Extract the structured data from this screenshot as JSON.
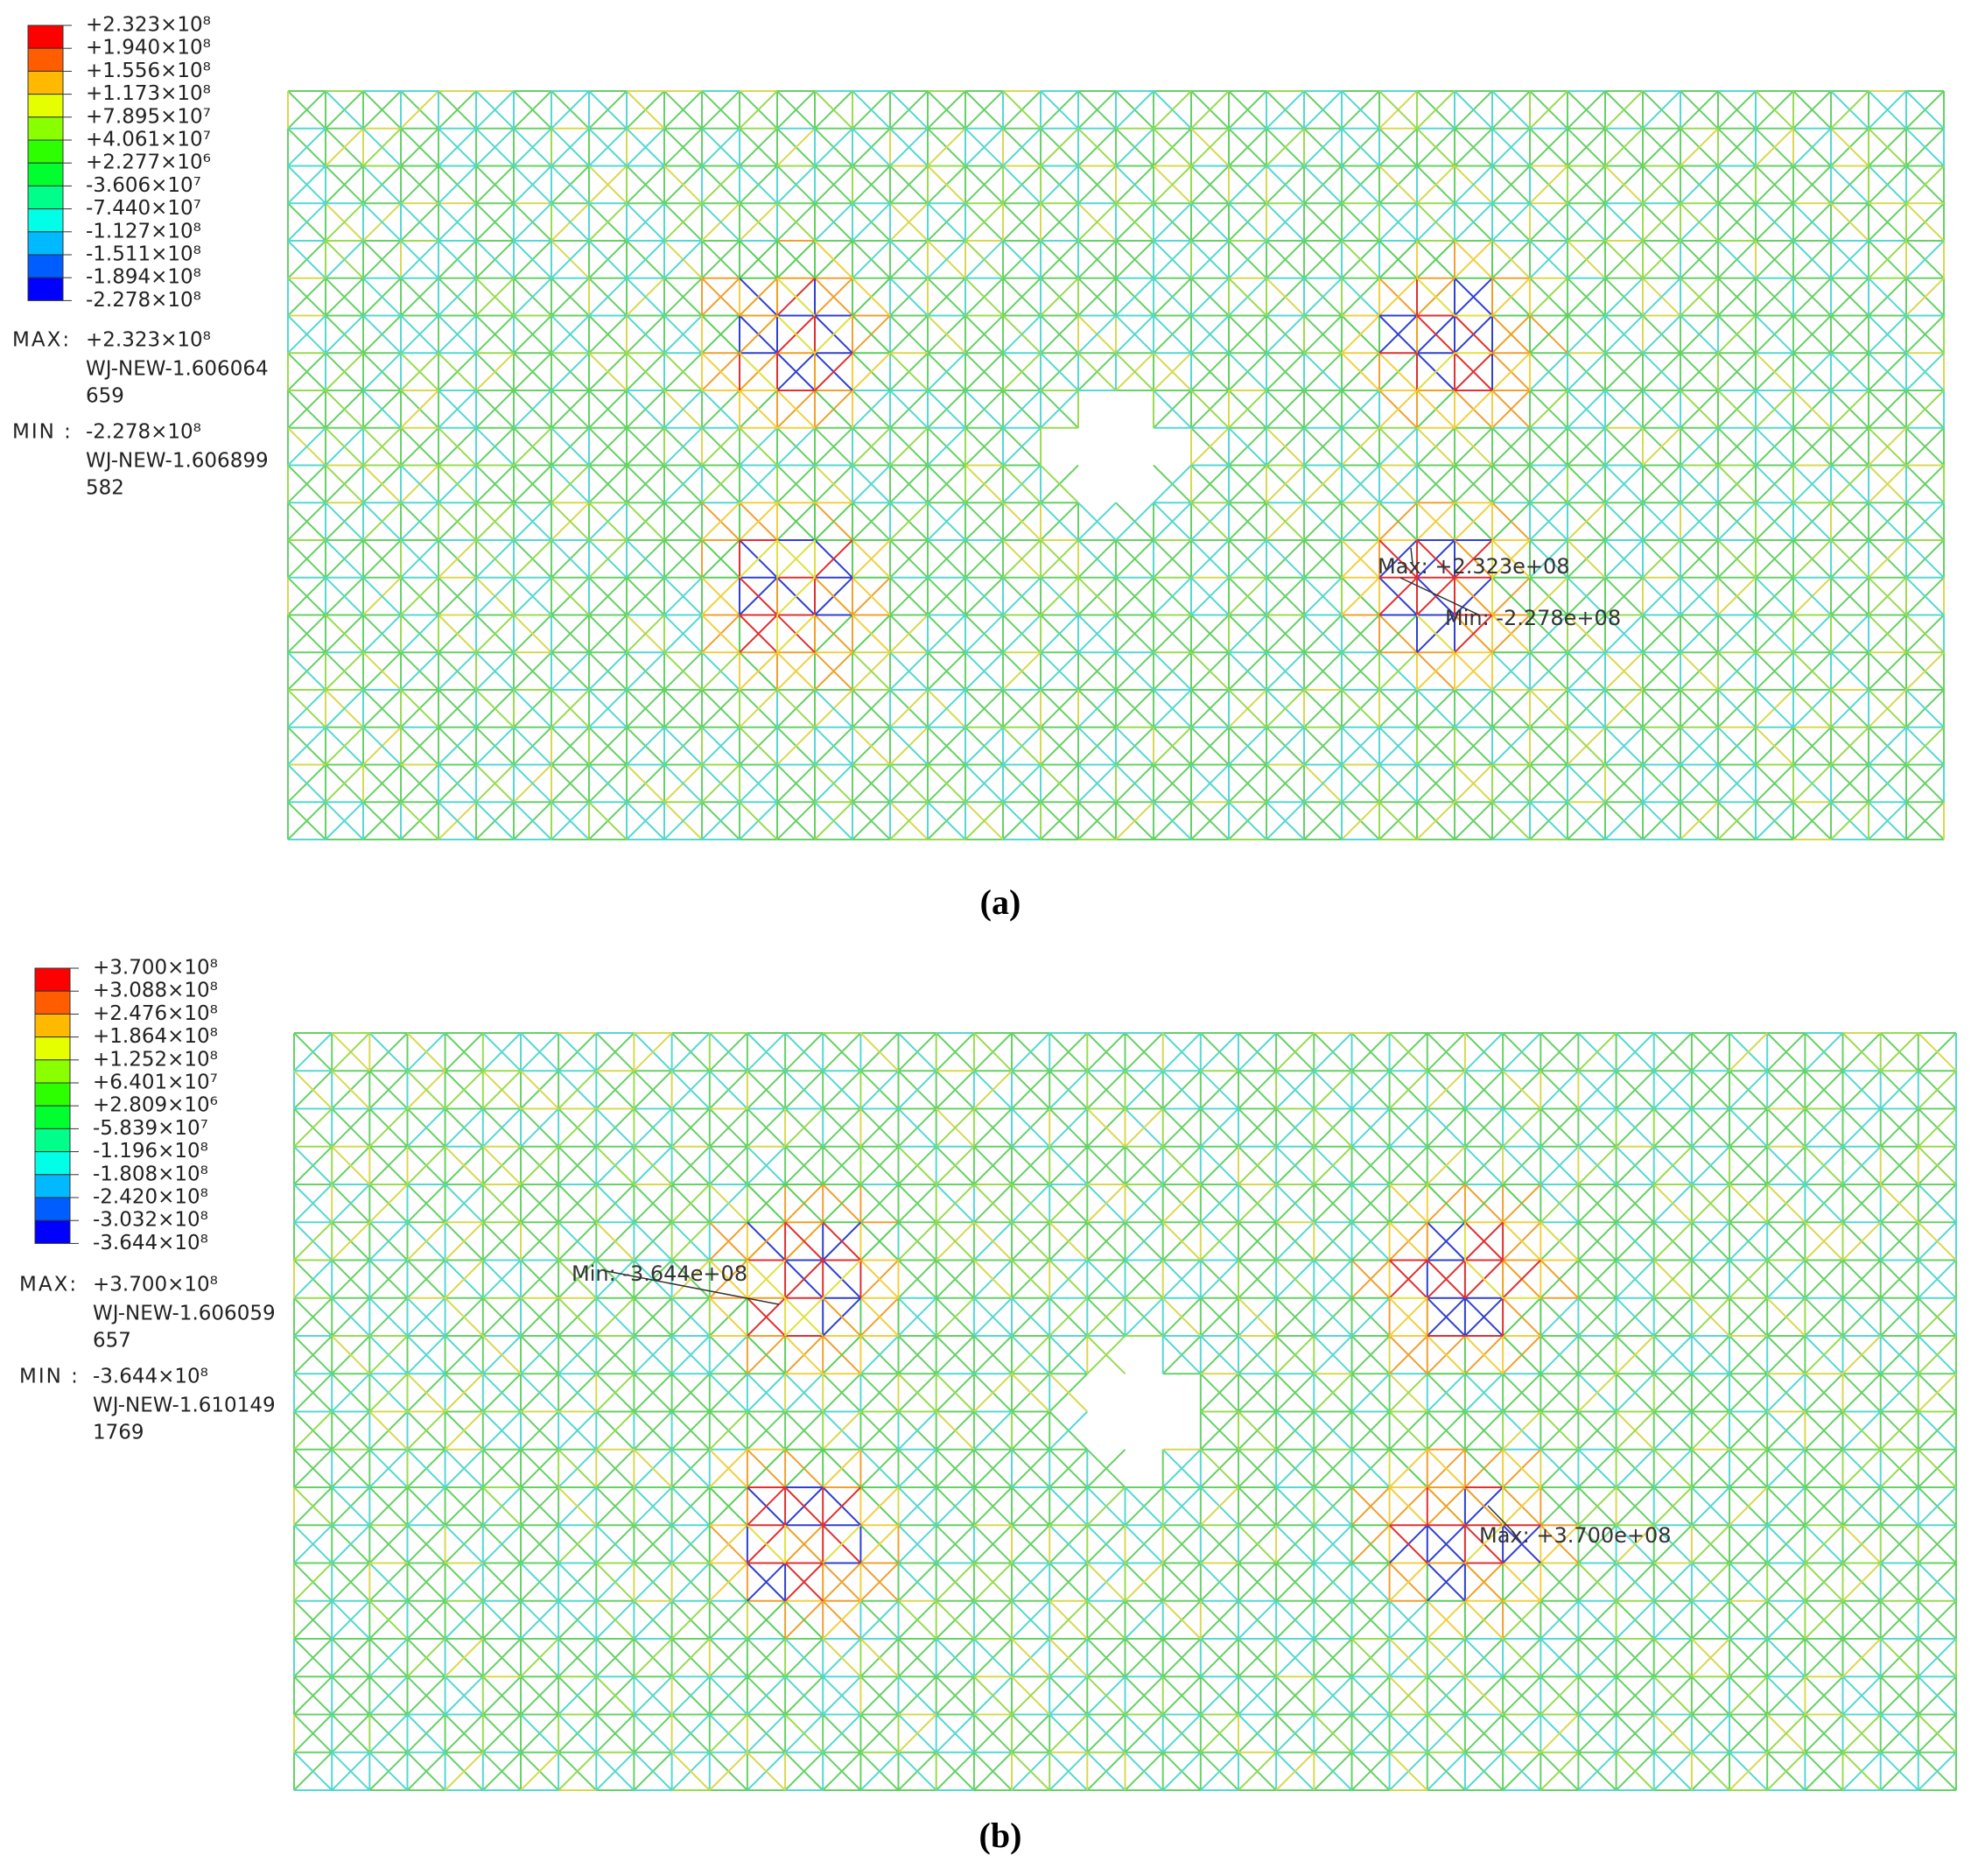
{
  "panels": [
    {
      "caption": "(a)",
      "legend": [
        "+2.323×10⁸",
        "+1.940×10⁸",
        "+1.556×10⁸",
        "+1.173×10⁸",
        "+7.895×10⁷",
        "+4.061×10⁷",
        "+2.277×10⁶",
        "-3.606×10⁷",
        "-7.440×10⁷",
        "-1.127×10⁸",
        "-1.511×10⁸",
        "-1.894×10⁸",
        "-2.278×10⁸"
      ],
      "max": {
        "label": "MAX:",
        "value": "+2.323×10⁸",
        "element": "WJ-NEW-1.606064",
        "node": "659"
      },
      "min": {
        "label": "MIN :",
        "value": "-2.278×10⁸",
        "element": "WJ-NEW-1.606899",
        "node": "582"
      },
      "annotations": [
        "Max: +2.323e+08",
        "Min: -2.278e+08"
      ]
    },
    {
      "caption": "(b)",
      "legend": [
        "+3.700×10⁸",
        "+3.088×10⁸",
        "+2.476×10⁸",
        "+1.864×10⁸",
        "+1.252×10⁸",
        "+6.401×10⁷",
        "+2.809×10⁶",
        "-5.839×10⁷",
        "-1.196×10⁸",
        "-1.808×10⁸",
        "-2.420×10⁸",
        "-3.032×10⁸",
        "-3.644×10⁸"
      ],
      "max": {
        "label": "MAX:",
        "value": "+3.700×10⁸",
        "element": "WJ-NEW-1.606059",
        "node": "657"
      },
      "min": {
        "label": "MIN :",
        "value": "-3.644×10⁸",
        "element": "WJ-NEW-1.610149",
        "node": "1769"
      },
      "annotations": [
        "Min: -3.644e+08",
        "Max: +3.700e+08"
      ]
    }
  ]
}
